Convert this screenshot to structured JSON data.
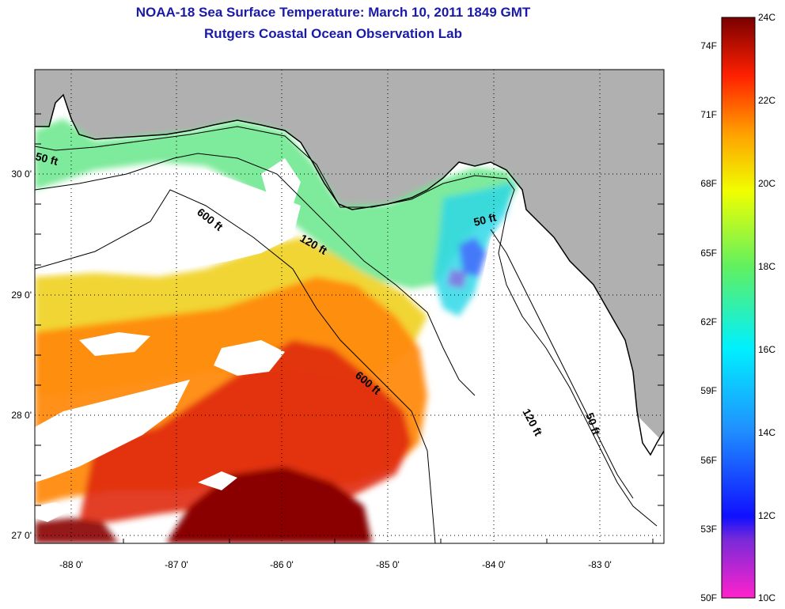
{
  "header": {
    "title": "NOAA-18 Sea Surface Temperature:  March 10, 2011 1849 GMT",
    "subtitle": "Rutgers Coastal Ocean Observation Lab"
  },
  "map": {
    "lon_labels": [
      "-88 0'",
      "-87 0'",
      "-86 0'",
      "-85 0'",
      "-84 0'",
      "-83 0'"
    ],
    "lat_labels": [
      "30 0'",
      "29 0'",
      "28 0'",
      "27 0'"
    ],
    "contour_labels": [
      "50 ft",
      "600 ft",
      "120 ft",
      "50 ft",
      "600 ft",
      "120 ft",
      "50 ft"
    ],
    "colors": {
      "land": "#b0b0b0",
      "cloud": "#ffffff"
    }
  },
  "colorbar": {
    "f_labels": [
      "74F",
      "71F",
      "68F",
      "65F",
      "62F",
      "59F",
      "56F",
      "53F",
      "50F"
    ],
    "c_labels": [
      "24C",
      "22C",
      "20C",
      "18C",
      "16C",
      "14C",
      "12C",
      "10C"
    ],
    "min_c": 10,
    "max_c": 24
  }
}
